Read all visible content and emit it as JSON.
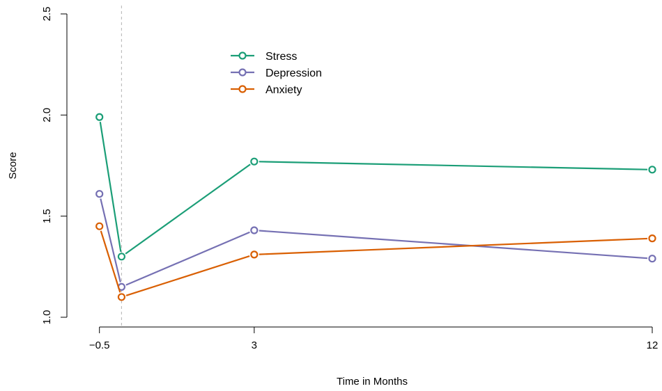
{
  "chart_data": {
    "type": "line",
    "title": "",
    "xlabel": "Time in Months",
    "ylabel": "Score",
    "xlim": [
      -0.7,
      12
    ],
    "ylim": [
      1.0,
      2.5
    ],
    "x_ticks": [
      -0.5,
      3,
      12
    ],
    "x_tick_labels": [
      "−0.5",
      "3",
      "12"
    ],
    "y_ticks": [
      1.0,
      1.5,
      2.0,
      2.5
    ],
    "y_tick_labels": [
      "1.0",
      "1.5",
      "2.0",
      "2.5"
    ],
    "reference_line_x": 0,
    "legend_position": "top-center",
    "grid": false,
    "x": [
      -0.5,
      0,
      3,
      12
    ],
    "series": [
      {
        "name": "Stress",
        "color": "#1b9e77",
        "values": [
          1.99,
          1.3,
          1.77,
          1.73
        ]
      },
      {
        "name": "Depression",
        "color": "#7570b3",
        "values": [
          1.61,
          1.15,
          1.43,
          1.29
        ]
      },
      {
        "name": "Anxiety",
        "color": "#d95f02",
        "values": [
          1.45,
          1.1,
          1.31,
          1.39
        ]
      }
    ]
  }
}
